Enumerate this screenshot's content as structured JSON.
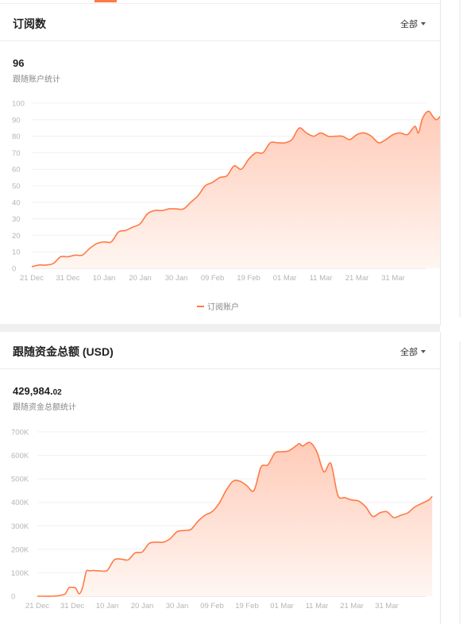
{
  "subscriptions": {
    "title": "订阅数",
    "filter_label": "全部",
    "stat_value": "96",
    "stat_label": "跟随账户统计",
    "legend_label": "订阅账户"
  },
  "funds": {
    "title": "跟随资金总额 (USD)",
    "filter_label": "全部",
    "stat_value_int": "429,984.",
    "stat_value_dec": "02",
    "stat_label": "跟随资金总额统计"
  },
  "colors": {
    "line": "#ff7a45",
    "area_top": "#ffcbb8",
    "area_bottom": "#fff6f2"
  },
  "chart_data": [
    {
      "type": "area",
      "x_tick_labels": [
        "21 Dec",
        "31 Dec",
        "10 Jan",
        "20 Jan",
        "30 Jan",
        "09 Feb",
        "19 Feb",
        "01 Mar",
        "11 Mar",
        "21 Mar",
        "31 Mar"
      ],
      "y_tick_labels": [
        "0",
        "10",
        "20",
        "30",
        "40",
        "50",
        "60",
        "70",
        "80",
        "90",
        "100"
      ],
      "ylim": [
        0,
        100
      ],
      "x_days": [
        0,
        2,
        4,
        6,
        8,
        10,
        12,
        14,
        16,
        18,
        20,
        22,
        24,
        26,
        28,
        30,
        32,
        34,
        36,
        38,
        40,
        42,
        44,
        46,
        48,
        50,
        52,
        54,
        56,
        58,
        60,
        62,
        64,
        66,
        68,
        69,
        70,
        72,
        74,
        76,
        78,
        80,
        82,
        84,
        86,
        88,
        90,
        92,
        94,
        96,
        98,
        100,
        102,
        104,
        106,
        107,
        108,
        109,
        110,
        111,
        112,
        113
      ],
      "series": [
        {
          "values": [
            1,
            2,
            2,
            3,
            7,
            7,
            8,
            8,
            12,
            15,
            16,
            16,
            22,
            23,
            25,
            27,
            33,
            35,
            35,
            36,
            36,
            36,
            40,
            44,
            50,
            52,
            55,
            56,
            62,
            60,
            66,
            70,
            70,
            76,
            76,
            76,
            76,
            78,
            85,
            82,
            80,
            82,
            80,
            80,
            80,
            78,
            81,
            82,
            80,
            76,
            78,
            81,
            82,
            81,
            86,
            82,
            90,
            94,
            95,
            92,
            90,
            92
          ]
        }
      ],
      "grid": true
    },
    {
      "type": "area",
      "x_tick_labels": [
        "21 Dec",
        "31 Dec",
        "10 Jan",
        "20 Jan",
        "30 Jan",
        "09 Feb",
        "19 Feb",
        "01 Mar",
        "11 Mar",
        "21 Mar",
        "31 Mar"
      ],
      "y_tick_labels": [
        "0",
        "100K",
        "200K",
        "300K",
        "400K",
        "500K",
        "600K",
        "700K"
      ],
      "ylim": [
        0,
        700000
      ],
      "x_days": [
        0,
        2,
        4,
        6,
        7,
        8,
        9,
        10,
        11,
        12,
        13,
        14,
        15,
        16,
        18,
        20,
        22,
        24,
        26,
        28,
        30,
        32,
        34,
        36,
        38,
        40,
        42,
        44,
        46,
        48,
        50,
        52,
        54,
        56,
        58,
        60,
        62,
        64,
        66,
        68,
        70,
        72,
        74,
        75,
        76,
        78,
        80,
        82,
        84,
        86,
        88,
        90,
        92,
        94,
        96,
        98,
        100,
        102,
        104,
        106,
        108,
        110,
        112,
        113
      ],
      "series": [
        {
          "values": [
            0,
            0,
            0,
            2000,
            5000,
            10000,
            35000,
            38000,
            34000,
            10000,
            40000,
            105000,
            108000,
            110000,
            108000,
            110000,
            155000,
            158000,
            155000,
            185000,
            188000,
            225000,
            230000,
            230000,
            245000,
            275000,
            280000,
            285000,
            320000,
            345000,
            360000,
            395000,
            450000,
            490000,
            490000,
            470000,
            450000,
            550000,
            560000,
            610000,
            615000,
            620000,
            640000,
            650000,
            640000,
            655000,
            615000,
            530000,
            565000,
            430000,
            420000,
            410000,
            405000,
            380000,
            340000,
            355000,
            360000,
            335000,
            345000,
            355000,
            380000,
            395000,
            410000,
            425000
          ]
        }
      ],
      "grid": true
    }
  ]
}
